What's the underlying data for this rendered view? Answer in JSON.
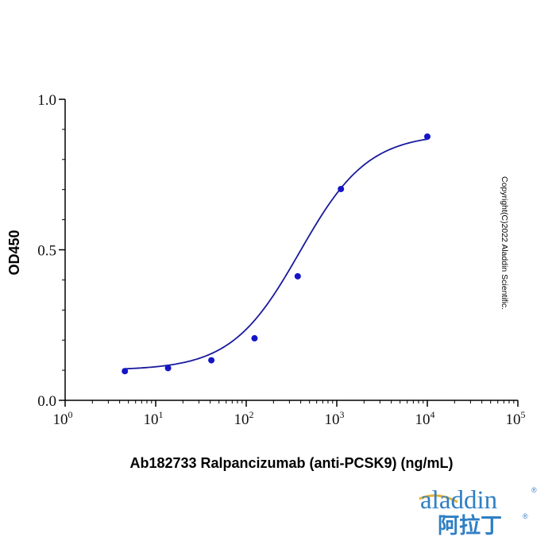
{
  "chart_data": {
    "type": "scatter",
    "xlabel": "Ab182733 Ralpancizumab (anti-PCSK9) (ng/mL)",
    "ylabel": "OD450",
    "xscale": "log",
    "xlim": [
      1,
      100000
    ],
    "ylim": [
      0.0,
      1.0
    ],
    "x_ticks": [
      {
        "base": "10",
        "exp": "0"
      },
      {
        "base": "10",
        "exp": "1"
      },
      {
        "base": "10",
        "exp": "2"
      },
      {
        "base": "10",
        "exp": "3"
      },
      {
        "base": "10",
        "exp": "4"
      },
      {
        "base": "10",
        "exp": "5"
      }
    ],
    "y_ticks": [
      "0.0",
      "0.5",
      "1.0"
    ],
    "series": [
      {
        "x": [
          4.57,
          13.7,
          41.2,
          123.5,
          370.4,
          1111.1,
          10000
        ],
        "y": [
          0.097,
          0.107,
          0.133,
          0.206,
          0.412,
          0.702,
          0.876
        ]
      }
    ],
    "fit": {
      "model": "4PL",
      "bottom": 0.1,
      "top": 0.886,
      "ec50": 390,
      "hill": 1.15
    },
    "grid": false,
    "legend": "none",
    "colors": {
      "points": "#1515c8",
      "curve": "#1a1a9e",
      "axis": "#000000"
    }
  },
  "watermark": {
    "copyright": "Copyright(C)2022 Aladdin Scientific."
  },
  "logo": {
    "latin": "aladdin",
    "cjk": "阿拉丁",
    "reg": "®"
  }
}
